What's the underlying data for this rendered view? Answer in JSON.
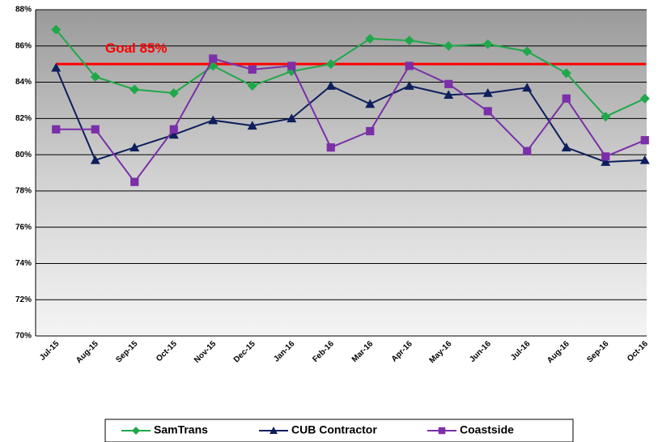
{
  "chart_data": {
    "type": "line",
    "categories": [
      "Jul-15",
      "Aug-15",
      "Sep-15",
      "Oct-15",
      "Nov-15",
      "Dec-15",
      "Jan-16",
      "Feb-16",
      "Mar-16",
      "Apr-16",
      "May-16",
      "Jun-16",
      "Jul-16",
      "Aug-16",
      "Sep-16",
      "Oct-16"
    ],
    "series": [
      {
        "name": "SamTrans",
        "color": "#1fa84a",
        "marker": "diamond",
        "values": [
          86.9,
          84.3,
          83.6,
          83.4,
          84.9,
          83.8,
          84.6,
          85.0,
          86.4,
          86.3,
          86.0,
          86.1,
          85.7,
          84.5,
          82.1,
          83.1
        ]
      },
      {
        "name": "CUB Contractor",
        "color": "#0d1f5c",
        "marker": "triangle",
        "values": [
          84.8,
          79.7,
          80.4,
          81.1,
          81.9,
          81.6,
          82.0,
          83.8,
          82.8,
          83.8,
          83.3,
          83.4,
          83.7,
          80.4,
          79.6,
          79.7
        ]
      },
      {
        "name": "Coastside",
        "color": "#7b2fa8",
        "marker": "square",
        "values": [
          81.4,
          81.4,
          78.5,
          81.4,
          85.3,
          84.7,
          84.9,
          80.4,
          81.3,
          84.9,
          83.9,
          82.4,
          80.2,
          83.1,
          79.9,
          80.8
        ]
      }
    ],
    "goal": {
      "value": 85,
      "label": "Goal 85%",
      "color": "#ff0000"
    },
    "ylim": [
      70,
      88
    ],
    "yticks": [
      {
        "value": 70,
        "label": "70%"
      },
      {
        "value": 72,
        "label": "72%"
      },
      {
        "value": 74,
        "label": "74%"
      },
      {
        "value": 76,
        "label": "76%"
      },
      {
        "value": 78,
        "label": "78%"
      },
      {
        "value": 80,
        "label": "80%"
      },
      {
        "value": 82,
        "label": "82%"
      },
      {
        "value": 84,
        "label": "84%"
      },
      {
        "value": 86,
        "label": "86%"
      },
      {
        "value": 88,
        "label": "88%"
      }
    ],
    "grid": true,
    "legend": "bottom"
  }
}
